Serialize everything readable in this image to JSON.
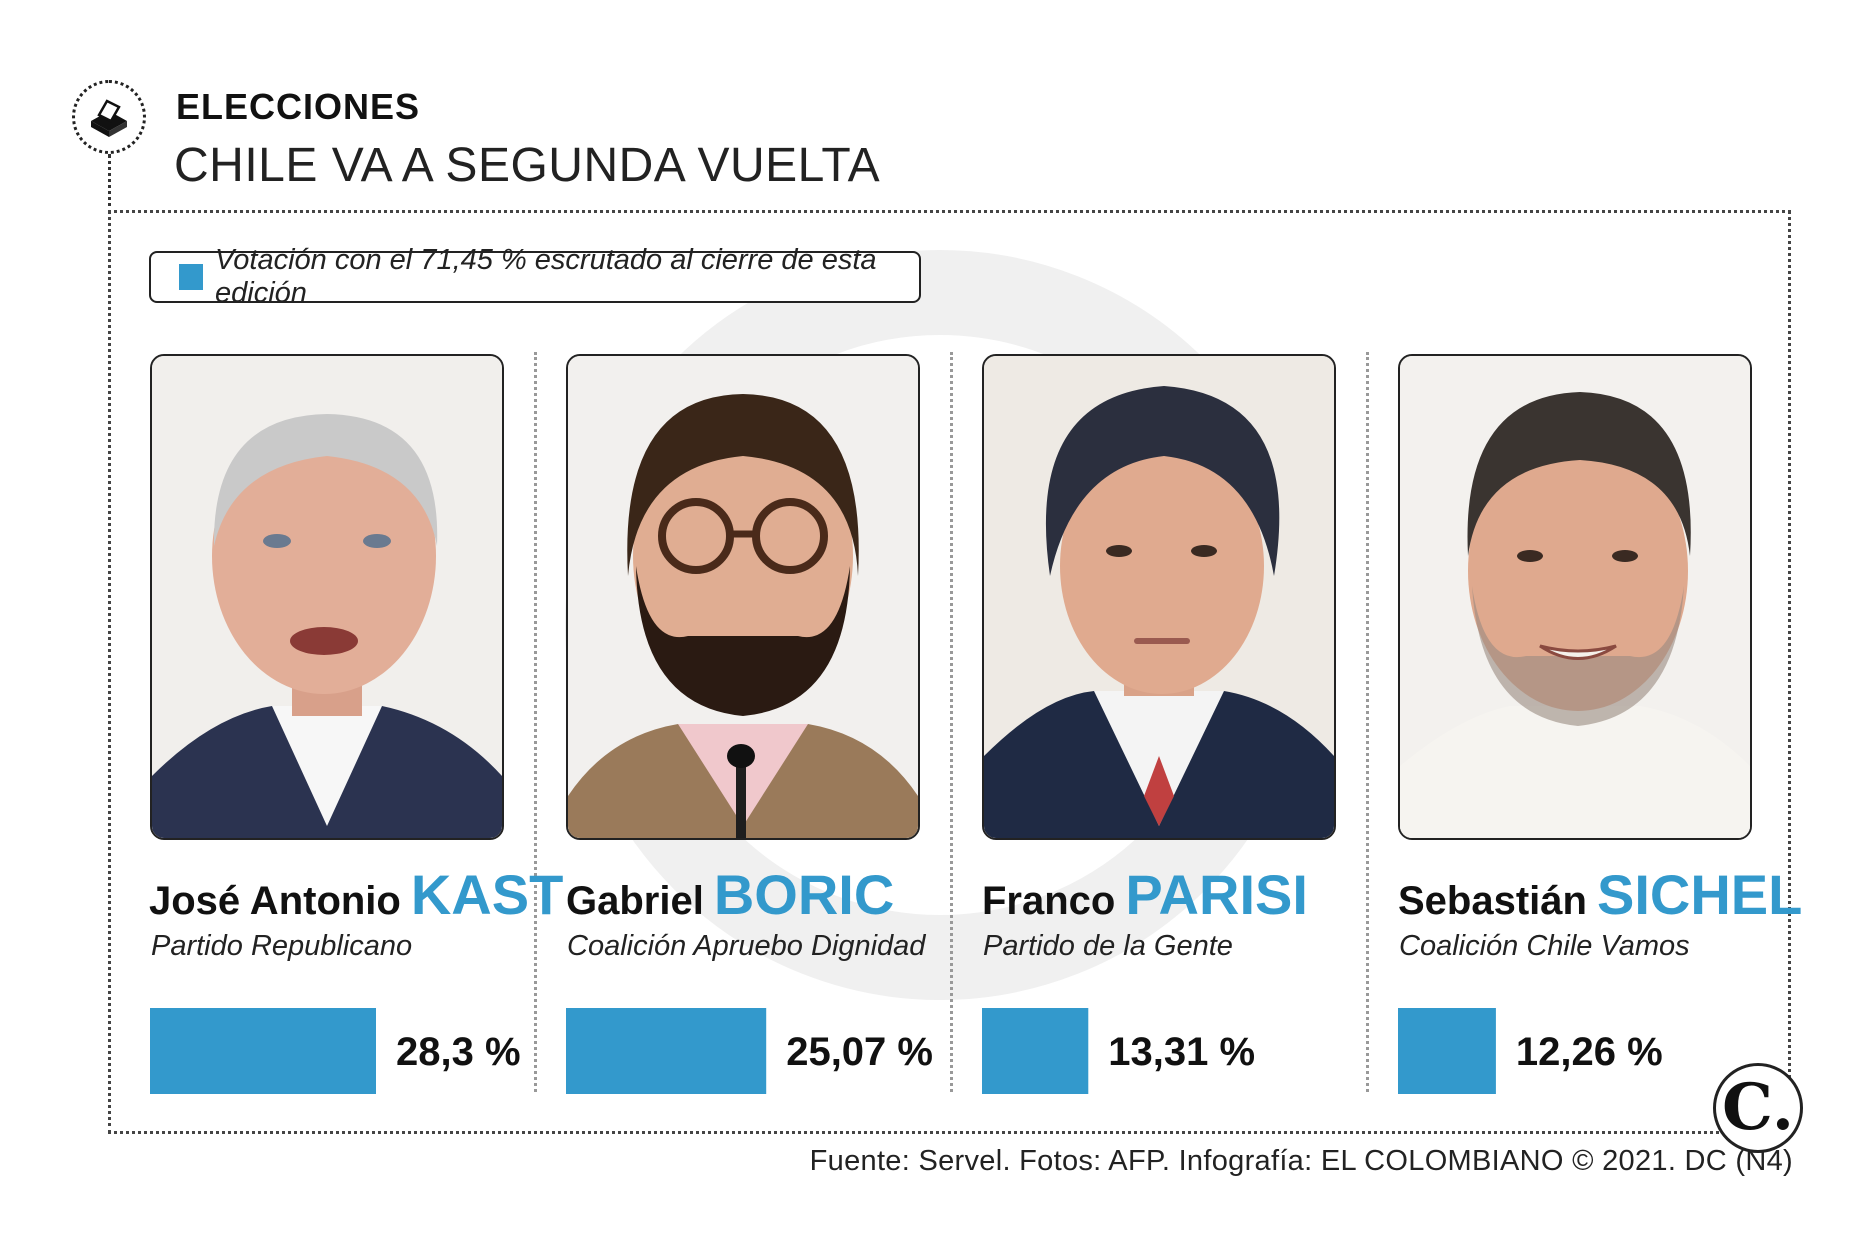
{
  "header": {
    "icon": "ballot-box-icon",
    "kicker": "ELECCIONES",
    "title": "CHILE VA A SEGUNDA VUELTA"
  },
  "legend": {
    "text": "Votación con el 71,45 % escrutado al cierre de esta edición",
    "color": "#3399cc"
  },
  "chart_data": {
    "type": "bar",
    "categories": [
      "José Antonio KAST",
      "Gabriel BORIC",
      "Franco PARISI",
      "Sebastián SICHEL"
    ],
    "values": [
      28.3,
      25.07,
      13.31,
      12.26
    ],
    "value_labels": [
      "28,3 %",
      "25,07 %",
      "13,31 %",
      "12,26 %"
    ],
    "series": [
      {
        "name": "Votación con el 71,45 % escrutado al cierre de esta edición",
        "values": [
          28.3,
          25.07,
          13.31,
          12.26
        ]
      }
    ],
    "orientation": "horizontal",
    "xlim": [
      0,
      45
    ],
    "grid": false
  },
  "candidates": [
    {
      "first": "José Antonio",
      "last": "KAST",
      "party": "Partido Republicano",
      "pct": "28,3 %"
    },
    {
      "first": "Gabriel",
      "last": "BORIC",
      "party": "Coalición Apruebo Dignidad",
      "pct": "25,07 %"
    },
    {
      "first": "Franco",
      "last": "PARISI",
      "party": "Partido de la Gente",
      "pct": "13,31 %"
    },
    {
      "first": "Sebastián",
      "last": "SICHEL",
      "party": "Coalición Chile Vamos",
      "pct": "12,26 %"
    }
  ],
  "logo": {
    "letter": "C."
  },
  "footer": {
    "source": "Fuente: Servel. Fotos: AFP. Infografía: EL COLOMBIANO © 2021. DC (N4)"
  },
  "colors": {
    "accent": "#3399cc",
    "text": "#111111"
  }
}
